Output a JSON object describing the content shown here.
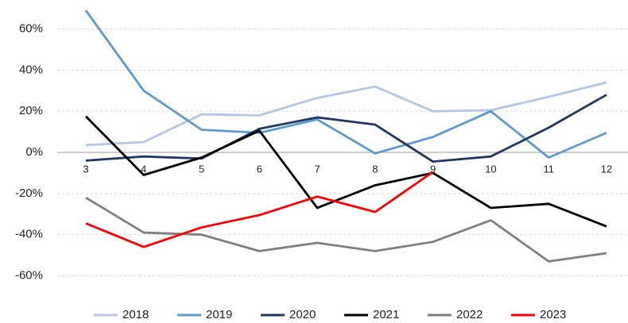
{
  "chart_data": {
    "type": "line",
    "categories": [
      "3",
      "4",
      "5",
      "6",
      "7",
      "8",
      "9",
      "10",
      "11",
      "12"
    ],
    "series": [
      {
        "name": "2018",
        "color": "#b4c7e7",
        "values": [
          3.5,
          5,
          18.5,
          18,
          26.5,
          32,
          20,
          20.5,
          27,
          34
        ]
      },
      {
        "name": "2019",
        "color": "#5b9bd5",
        "values": [
          69,
          30,
          11,
          9.5,
          16,
          -0.5,
          7.5,
          20,
          -2.5,
          9.5
        ]
      },
      {
        "name": "2020",
        "color": "#1f3864",
        "values": [
          -4,
          -2,
          -3,
          11.5,
          17,
          13.5,
          -4.5,
          -2,
          12,
          28
        ]
      },
      {
        "name": "2021",
        "color": "#000000",
        "values": [
          17.5,
          -11,
          -2.5,
          10.5,
          -27,
          -16,
          -10,
          -27,
          -25,
          -36
        ]
      },
      {
        "name": "2022",
        "color": "#808080",
        "values": [
          -22,
          -39,
          -40,
          -48,
          -44,
          -48,
          -43.5,
          -33,
          -53,
          -49
        ]
      },
      {
        "name": "2023",
        "color": "#ff0000",
        "values": [
          -34.5,
          -46,
          -36.5,
          -30.5,
          -21.5,
          -29,
          -9.5,
          null,
          null,
          null
        ]
      }
    ],
    "ylim": [
      -70,
      72
    ],
    "yticks": [
      {
        "value": -60,
        "label": "-60%"
      },
      {
        "value": -40,
        "label": "-40%"
      },
      {
        "value": -20,
        "label": "-20%"
      },
      {
        "value": 0,
        "label": "0%"
      },
      {
        "value": 20,
        "label": "20%"
      },
      {
        "value": 40,
        "label": "40%"
      },
      {
        "value": 60,
        "label": "60%"
      }
    ],
    "grid": true,
    "legend": "bottom"
  }
}
